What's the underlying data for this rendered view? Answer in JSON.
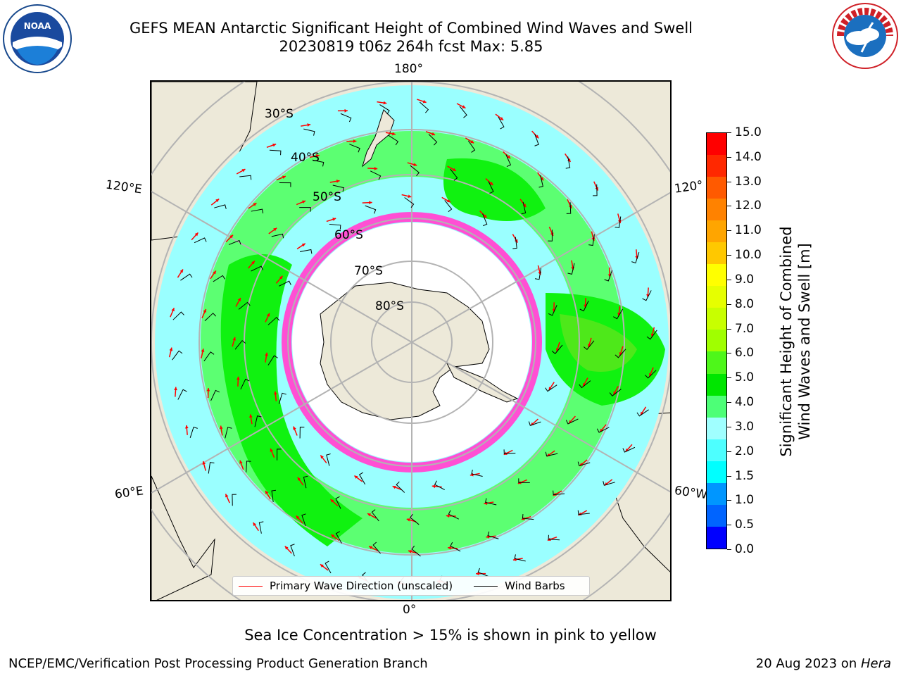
{
  "title": {
    "line1": "GEFS MEAN Antarctic Significant Height of Combined Wind Waves and Swell",
    "line2": "20230819 t06z 264h fcst   Max: 5.85"
  },
  "map": {
    "longitude_labels": {
      "top": "180°",
      "bottom": "0°",
      "left_upper": "120°E",
      "left_lower": "60°E",
      "right_upper": "120°",
      "right_lower": "60°W"
    },
    "latitude_labels": [
      "30°S",
      "40°S",
      "50°S",
      "60°S",
      "70°S",
      "80°S"
    ],
    "colors": {
      "land": "#ede9d9",
      "ocean_calm": "#5cff72",
      "ocean_moderate": "#10f210",
      "ocean_higher": "#4ee81a",
      "ocean_low": "#9affff",
      "ice": "#ffffff",
      "ice_edge": "#ff4fd4",
      "graticule": "#b3b3b3",
      "wave_arrow": "#ff0000",
      "wind_barb": "#000000"
    }
  },
  "legend": {
    "primary_wave_label": "Primary Wave Direction (unscaled)",
    "wind_barbs_label": "Wind Barbs"
  },
  "colorbar": {
    "title_line1": "Significant Height of Combined",
    "title_line2": "Wind Waves and Swell [m]",
    "ticks": [
      "15.0",
      "14.0",
      "13.0",
      "12.0",
      "11.0",
      "10.0",
      "9.0",
      "8.0",
      "7.0",
      "6.0",
      "5.0",
      "4.0",
      "3.0",
      "2.0",
      "1.5",
      "1.0",
      "0.5",
      "0.0"
    ],
    "colors": [
      "#ff0000",
      "#ff2800",
      "#ff5a00",
      "#ff8200",
      "#ffa500",
      "#ffc800",
      "#ffff00",
      "#e6ff00",
      "#c8ff00",
      "#a0ff00",
      "#4ef71a",
      "#00e600",
      "#4dff77",
      "#a0ffff",
      "#4dffff",
      "#00ffff",
      "#0096ff",
      "#0064ff",
      "#0000ff"
    ]
  },
  "note": "Sea Ice Concentration > 15% is shown in pink to yellow",
  "footer": {
    "left": "NCEP/EMC/Verification Post Processing Product Generation Branch",
    "right_date": "20 Aug 2023 on ",
    "right_host": "Hera"
  },
  "logos": {
    "noaa": "NOAA",
    "nws": "NATIONAL WEATHER SERVICE"
  }
}
